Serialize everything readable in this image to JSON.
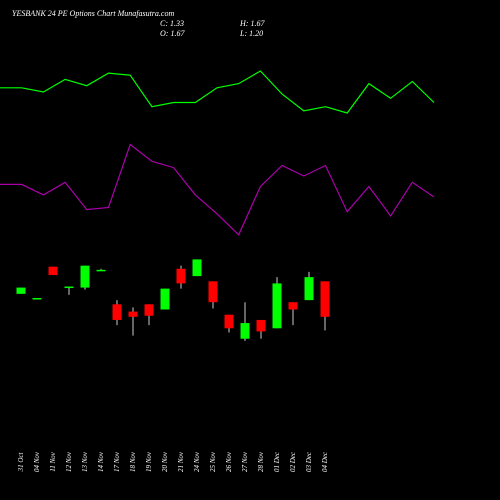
{
  "header": {
    "title": "YESBANK 24  PE Options  Chart Munafasutra.com",
    "close": "C: 1.33",
    "open": "O: 1.67",
    "high": "H: 1.67",
    "low": "L: 1.20"
  },
  "chart_data": [
    {
      "type": "line",
      "ylim": [
        0,
        100
      ],
      "series": [
        {
          "color": "#00ff00",
          "values": [
            82,
            82,
            80,
            86,
            83,
            89,
            88,
            73,
            75,
            75,
            82,
            84,
            90,
            79,
            71,
            73,
            70,
            84,
            77,
            85,
            75
          ]
        },
        {
          "color": "#aa00aa",
          "values": [
            36,
            36,
            31,
            37,
            24,
            25,
            55,
            47,
            44,
            31,
            22,
            12,
            35,
            45,
            40,
            45,
            23,
            35,
            21,
            37,
            30
          ]
        }
      ]
    },
    {
      "type": "candlestick",
      "ylim": [
        1.06,
        1.97
      ],
      "up_color": "#00ff00",
      "down_color": "#ff0000",
      "categories": [
        "31 Oct",
        "04 Nov",
        "11 Nov",
        "12 Nov",
        "13 Nov",
        "14 Nov",
        "17 Nov",
        "18 Nov",
        "19 Nov",
        "20 Nov",
        "21 Nov",
        "24 Nov",
        "25 Nov",
        "26 Nov",
        "27 Nov",
        "28 Nov",
        "01 Dec",
        "02 Dec",
        "03 Dec",
        "04 Dec"
      ],
      "open": [
        1.55,
        1.51,
        1.81,
        1.62,
        1.61,
        1.78,
        1.45,
        1.38,
        1.45,
        1.4,
        1.79,
        1.72,
        1.67,
        1.35,
        1.12,
        1.3,
        1.22,
        1.47,
        1.49,
        1.67
      ],
      "high": [
        1.61,
        1.51,
        1.81,
        1.62,
        1.82,
        1.79,
        1.49,
        1.42,
        1.45,
        1.6,
        1.82,
        1.88,
        1.67,
        1.35,
        1.47,
        1.3,
        1.71,
        1.47,
        1.76,
        1.67
      ],
      "low": [
        1.55,
        1.51,
        1.73,
        1.54,
        1.59,
        1.78,
        1.25,
        1.15,
        1.25,
        1.4,
        1.6,
        1.72,
        1.41,
        1.18,
        1.1,
        1.12,
        1.22,
        1.25,
        1.49,
        1.2
      ],
      "close": [
        1.61,
        1.51,
        1.73,
        1.62,
        1.82,
        1.78,
        1.3,
        1.33,
        1.34,
        1.6,
        1.65,
        1.88,
        1.47,
        1.22,
        1.27,
        1.19,
        1.65,
        1.4,
        1.71,
        1.33
      ]
    }
  ]
}
